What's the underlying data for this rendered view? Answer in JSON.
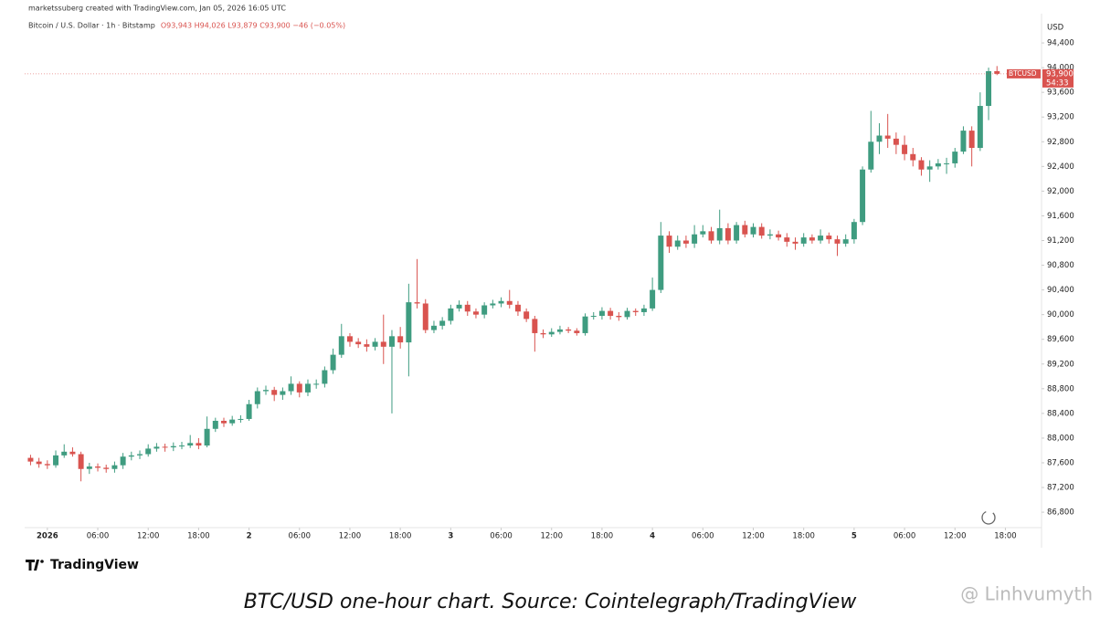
{
  "header": {
    "credit": "marketssuberg created with TradingView.com, Jan 05, 2026 16:05 UTC",
    "symbol": "Bitcoin / U.S. Dollar · 1h · Bitstamp",
    "ohlc": "O93,943 H94,026 L93,879 C93,900 −46 (−0.05%)"
  },
  "chart_data": {
    "type": "candlestick",
    "x": [
      -2,
      -1,
      0,
      1,
      2,
      3,
      4,
      5,
      6,
      7,
      8,
      9,
      10,
      11,
      12,
      13,
      14,
      15,
      16,
      17,
      18,
      19,
      20,
      21,
      22,
      23,
      24,
      25,
      26,
      27,
      28,
      29,
      30,
      31,
      32,
      33,
      34,
      35,
      36,
      37,
      38,
      39,
      40,
      41,
      42,
      43,
      44,
      45,
      46,
      47,
      48,
      49,
      50,
      51,
      52,
      53,
      54,
      55,
      56,
      57,
      58,
      59,
      60,
      61,
      62,
      63,
      64,
      65,
      66,
      67,
      68,
      69,
      70,
      71,
      72,
      73,
      74,
      75,
      76,
      77,
      78,
      79,
      80,
      81,
      82,
      83,
      84,
      85,
      86,
      87,
      88,
      89,
      90,
      91,
      92,
      93,
      94,
      95,
      96,
      97,
      98,
      99,
      100,
      101,
      102,
      103,
      104,
      105,
      106,
      107,
      108,
      109,
      110,
      111,
      112,
      113
    ],
    "open": [
      87680,
      87620,
      87580,
      87560,
      87720,
      87780,
      87740,
      87500,
      87540,
      87520,
      87500,
      87560,
      87700,
      87720,
      87740,
      87830,
      87860,
      87850,
      87870,
      87880,
      87920,
      87880,
      88150,
      88280,
      88240,
      88300,
      88310,
      88550,
      88760,
      88780,
      88700,
      88760,
      88880,
      88740,
      88880,
      88880,
      89100,
      89350,
      89650,
      89560,
      89520,
      89480,
      89560,
      89480,
      89650,
      89550,
      90200,
      90180,
      89750,
      89820,
      89900,
      90100,
      90160,
      90050,
      90000,
      90150,
      90180,
      90220,
      90160,
      90050,
      89930,
      89700,
      89680,
      89720,
      89760,
      89740,
      89700,
      89970,
      89980,
      90060,
      89980,
      89960,
      90060,
      90040,
      90100,
      90400,
      91280,
      91100,
      91200,
      91150,
      91300,
      91350,
      91200,
      91400,
      91200,
      91450,
      91300,
      91420,
      91280,
      91300,
      91250,
      91180,
      91150,
      91250,
      91200,
      91280,
      91220,
      91150,
      91220,
      91500,
      92350,
      92800,
      92900,
      92850,
      92750,
      92600,
      92500,
      92350,
      92400,
      92450,
      92450,
      92640,
      92980,
      92700,
      93380,
      93943
    ],
    "high": [
      87730,
      87680,
      87640,
      87800,
      87900,
      87850,
      87780,
      87600,
      87590,
      87570,
      87620,
      87760,
      87780,
      87800,
      87900,
      87920,
      87910,
      87930,
      87940,
      88050,
      88000,
      88350,
      88330,
      88330,
      88360,
      88370,
      88620,
      88820,
      88850,
      88830,
      88820,
      89000,
      88920,
      88950,
      88950,
      89160,
      89450,
      89850,
      89700,
      89620,
      89600,
      89620,
      90000,
      89750,
      89800,
      90500,
      90900,
      90250,
      89900,
      89960,
      90160,
      90230,
      90220,
      90100,
      90200,
      90240,
      90280,
      90400,
      90220,
      90100,
      89980,
      89760,
      89780,
      89820,
      89800,
      89780,
      90020,
      90040,
      90120,
      90110,
      90040,
      90110,
      90100,
      90160,
      90600,
      91500,
      91350,
      91280,
      91280,
      91450,
      91450,
      91420,
      91700,
      91480,
      91500,
      91520,
      91480,
      91480,
      91380,
      91360,
      91320,
      91250,
      91320,
      91300,
      91380,
      91330,
      91280,
      91300,
      91550,
      92400,
      93300,
      93100,
      93250,
      92950,
      92900,
      92700,
      92550,
      92500,
      92520,
      92540,
      92700,
      93050,
      93050,
      93600,
      94000,
      94026
    ],
    "low": [
      87560,
      87520,
      87500,
      87520,
      87680,
      87700,
      87300,
      87420,
      87460,
      87440,
      87440,
      87500,
      87640,
      87660,
      87700,
      87780,
      87780,
      87790,
      87820,
      87840,
      87820,
      87850,
      88100,
      88180,
      88200,
      88250,
      88280,
      88480,
      88700,
      88600,
      88620,
      88700,
      88660,
      88680,
      88800,
      88820,
      89040,
      89300,
      89480,
      89460,
      89400,
      89420,
      89200,
      88400,
      89450,
      89000,
      90100,
      89700,
      89700,
      89760,
      89840,
      90050,
      89980,
      89940,
      89940,
      90100,
      90120,
      90100,
      89980,
      89880,
      89400,
      89620,
      89640,
      89680,
      89700,
      89660,
      89660,
      89920,
      89920,
      89920,
      89900,
      89920,
      89980,
      89980,
      90060,
      90350,
      91000,
      91050,
      91080,
      91080,
      91250,
      91150,
      91140,
      91140,
      91150,
      91250,
      91250,
      91230,
      91220,
      91200,
      91100,
      91050,
      91100,
      91150,
      91150,
      91150,
      90950,
      91100,
      91150,
      91450,
      92300,
      92600,
      92700,
      92600,
      92500,
      92400,
      92250,
      92150,
      92350,
      92280,
      92380,
      92600,
      92400,
      92650,
      93150,
      93879
    ],
    "close": [
      87620,
      87580,
      87560,
      87720,
      87780,
      87740,
      87500,
      87540,
      87520,
      87500,
      87560,
      87700,
      87720,
      87740,
      87830,
      87860,
      87850,
      87870,
      87880,
      87920,
      87880,
      88150,
      88280,
      88240,
      88300,
      88310,
      88550,
      88760,
      88780,
      88700,
      88760,
      88880,
      88740,
      88880,
      88880,
      89100,
      89350,
      89650,
      89560,
      89520,
      89480,
      89560,
      89480,
      89650,
      89550,
      90200,
      90180,
      89750,
      89820,
      89900,
      90100,
      90160,
      90050,
      90000,
      90150,
      90180,
      90220,
      90160,
      90050,
      89930,
      89700,
      89680,
      89720,
      89760,
      89740,
      89700,
      89970,
      89980,
      90060,
      89980,
      89960,
      90060,
      90040,
      90100,
      90400,
      91280,
      91100,
      91200,
      91150,
      91300,
      91350,
      91200,
      91400,
      91200,
      91450,
      91300,
      91420,
      91280,
      91300,
      91250,
      91180,
      91150,
      91250,
      91200,
      91280,
      91220,
      91150,
      91220,
      91500,
      92350,
      92800,
      92900,
      92850,
      92750,
      92600,
      92500,
      92350,
      92400,
      92450,
      92450,
      92640,
      92980,
      92700,
      93380,
      93943,
      93900
    ],
    "up_color": "#3f9c80",
    "down_color": "#d9534f",
    "xlim": [
      -2.7,
      118.3
    ],
    "xticks": [
      {
        "value": 0,
        "label": "2026"
      },
      {
        "value": 6,
        "label": "06:00"
      },
      {
        "value": 12,
        "label": "12:00"
      },
      {
        "value": 18,
        "label": "18:00"
      },
      {
        "value": 24,
        "label": "2"
      },
      {
        "value": 30,
        "label": "06:00"
      },
      {
        "value": 36,
        "label": "12:00"
      },
      {
        "value": 42,
        "label": "18:00"
      },
      {
        "value": 48,
        "label": "3"
      },
      {
        "value": 54,
        "label": "06:00"
      },
      {
        "value": 60,
        "label": "12:00"
      },
      {
        "value": 66,
        "label": "18:00"
      },
      {
        "value": 72,
        "label": "4"
      },
      {
        "value": 78,
        "label": "06:00"
      },
      {
        "value": 84,
        "label": "12:00"
      },
      {
        "value": 90,
        "label": "18:00"
      },
      {
        "value": 96,
        "label": "5"
      },
      {
        "value": 102,
        "label": "06:00"
      },
      {
        "value": 108,
        "label": "12:00"
      },
      {
        "value": 114,
        "label": "18:00"
      }
    ],
    "ylim": [
      86550,
      94800
    ],
    "yticks": [
      {
        "value": 86800,
        "label": "86,800"
      },
      {
        "value": 87200,
        "label": "87,200"
      },
      {
        "value": 87600,
        "label": "87,600"
      },
      {
        "value": 88000,
        "label": "88,000"
      },
      {
        "value": 88400,
        "label": "88,400"
      },
      {
        "value": 88800,
        "label": "88,800"
      },
      {
        "value": 89200,
        "label": "89,200"
      },
      {
        "value": 89600,
        "label": "89,600"
      },
      {
        "value": 90000,
        "label": "90,000"
      },
      {
        "value": 90400,
        "label": "90,400"
      },
      {
        "value": 90800,
        "label": "90,800"
      },
      {
        "value": 91200,
        "label": "91,200"
      },
      {
        "value": 91600,
        "label": "91,600"
      },
      {
        "value": 92000,
        "label": "92,000"
      },
      {
        "value": 92400,
        "label": "92,400"
      },
      {
        "value": 92800,
        "label": "92,800"
      },
      {
        "value": 93200,
        "label": "93,200"
      },
      {
        "value": 93600,
        "label": "93,600"
      },
      {
        "value": 94000,
        "label": "94,000"
      },
      {
        "value": 94400,
        "label": "94,400"
      }
    ],
    "y_unit": "USD",
    "price_tag": {
      "symbol": "BTCUSD",
      "value": 93900,
      "label": "93,900",
      "countdown": "54:33"
    }
  },
  "footer": {
    "logo": "TradingView",
    "caption": "BTC/USD one-hour chart. Source: Cointelegraph/TradingView",
    "watermark": "@ Linhvumyth"
  }
}
